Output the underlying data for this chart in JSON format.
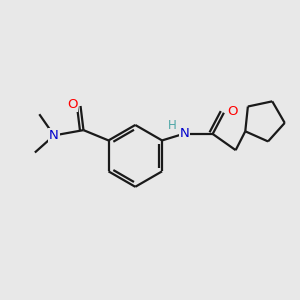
{
  "background_color": "#e8e8e8",
  "bond_color": "#1a1a1a",
  "atom_colors": {
    "O": "#ff0000",
    "N": "#0000cc",
    "H": "#4da6a6",
    "C": "#1a1a1a"
  },
  "figsize": [
    3.0,
    3.0
  ],
  "dpi": 100,
  "bond_lw": 1.6
}
